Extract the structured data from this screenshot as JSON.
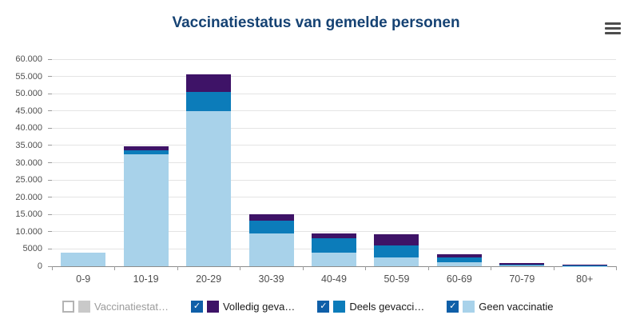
{
  "header": {
    "title": "Vaccinatiestatus van gemelde personen"
  },
  "chart_data": {
    "type": "bar",
    "stacked": true,
    "title": "Vaccinatiestatus van gemelde personen",
    "categories": [
      "0-9",
      "10-19",
      "20-29",
      "30-39",
      "40-49",
      "50-59",
      "60-69",
      "70-79",
      "80+"
    ],
    "series": [
      {
        "name": "Geen vaccinatie",
        "color": "#a8d2ea",
        "values": [
          4000,
          32500,
          45000,
          9500,
          4000,
          2500,
          1200,
          200,
          100
        ]
      },
      {
        "name": "Deels gevacci…",
        "color": "#0c7cba",
        "values": [
          0,
          1100,
          5500,
          3700,
          4100,
          3500,
          1300,
          200,
          100
        ]
      },
      {
        "name": "Volledig geva…",
        "color": "#3e1367",
        "values": [
          0,
          1200,
          5000,
          1800,
          1500,
          3300,
          900,
          600,
          200
        ]
      }
    ],
    "xlabel": "",
    "ylabel": "",
    "ylim": [
      0,
      60000
    ],
    "ytick_step": 5000,
    "ytick_labels": [
      "0",
      "5000",
      "10.000",
      "15.000",
      "20.000",
      "25.000",
      "30.000",
      "35.000",
      "40.000",
      "45.000",
      "50.000",
      "55.000",
      "60.000"
    ],
    "grid": true,
    "legend_position": "bottom"
  },
  "legend": {
    "checkbox_color": "#0f5fa8",
    "check_glyph": "✓",
    "items": [
      {
        "label": "Vaccinatiestat…",
        "checked": false,
        "swatch": "#c9c9c9",
        "text_color": "#9b9b9b"
      },
      {
        "label": "Volledig geva…",
        "checked": true,
        "swatch": "#3e1367",
        "text_color": "#1a1a1a"
      },
      {
        "label": "Deels gevacci…",
        "checked": true,
        "swatch": "#0c7cba",
        "text_color": "#1a1a1a"
      },
      {
        "label": "Geen vaccinatie",
        "checked": true,
        "swatch": "#a8d2ea",
        "text_color": "#1a1a1a"
      }
    ]
  }
}
